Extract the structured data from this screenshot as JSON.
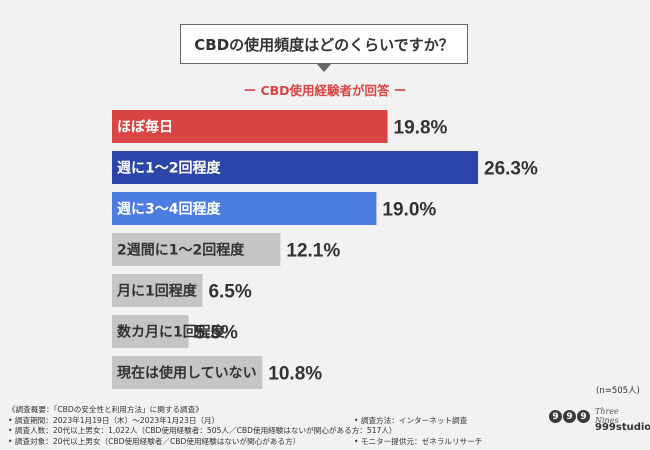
{
  "question": "CBDの使用頻度はどのくらいですか？",
  "subtitle": "ー CBD使用経験者が回答 ー",
  "n_note": "(n=505人)",
  "footnotes": {
    "line1": "《調査概要：「CBDの安全性と利用方法」に関する調査》",
    "line2": "• 調査期間：2023年1月19日（木）〜2023年1月23日（月）",
    "line2b": "• 調査方法：インターネット調査",
    "line3": "• 調査人数：20代以上男女：1,022人（CBD使用経験者：505人／CBD使用経験はないが関心がある方：517人）",
    "line4": "• 調査対象：20代以上男女（CBD使用経験者／CBD使用経験はないが関心がある方）",
    "line4b": "• モニター提供元：ゼネラルリサーチ"
  },
  "logo": {
    "mark": "999",
    "script": "Three Nines",
    "text": "999studio"
  },
  "colors": {
    "red": "#d94545",
    "navy": "#2b45a8",
    "blue": "#4e7de0",
    "gray": "#c5c5c5"
  },
  "chart_data": {
    "type": "bar",
    "orientation": "horizontal",
    "categories": [
      "ほぼ毎日",
      "週に1〜2回程度",
      "週に3〜4回程度",
      "2週間に1〜2回程度",
      "月に1回程度",
      "数カ月に1回程度",
      "現在は使用していない"
    ],
    "values": [
      19.8,
      26.3,
      19.0,
      12.1,
      6.5,
      5.5,
      10.8
    ],
    "value_labels": [
      "19.8%",
      "26.3%",
      "19.0%",
      "12.1%",
      "6.5%",
      "5.5%",
      "10.8%"
    ],
    "bar_colors": [
      "#d94545",
      "#2b45a8",
      "#4e7de0",
      "#c5c5c5",
      "#c5c5c5",
      "#c5c5c5",
      "#c5c5c5"
    ],
    "label_colors": [
      "#ffffff",
      "#ffffff",
      "#ffffff",
      "#333333",
      "#333333",
      "#333333",
      "#333333"
    ],
    "xlim": [
      0,
      26.3
    ]
  }
}
